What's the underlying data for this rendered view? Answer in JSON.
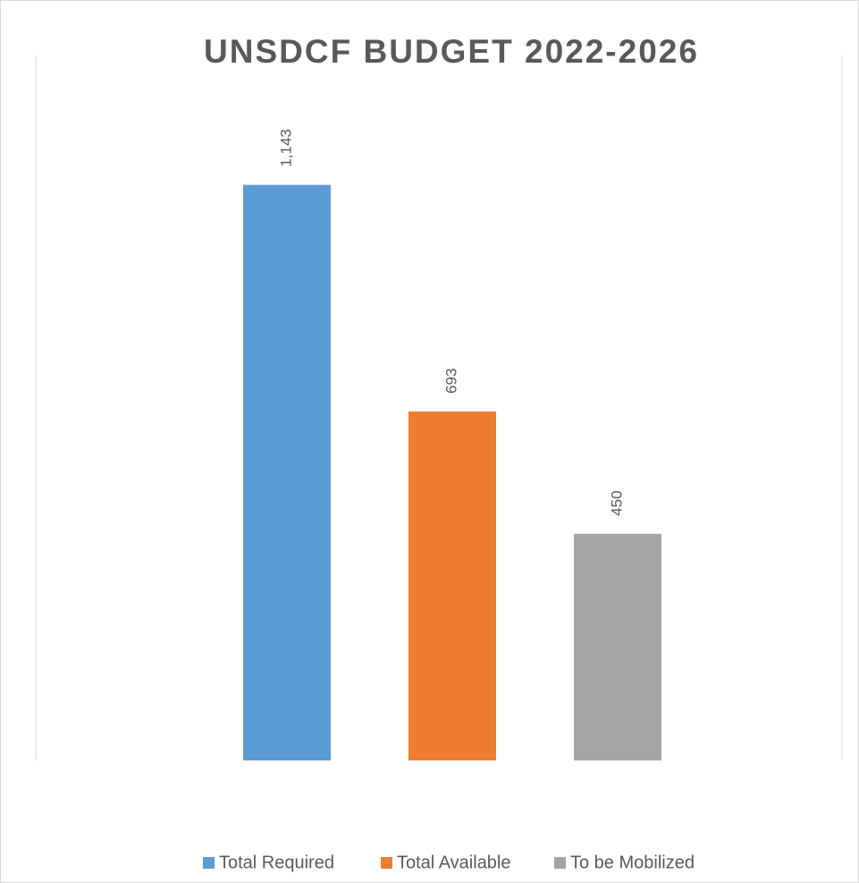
{
  "chart_data": {
    "type": "bar",
    "title": "UNSDCF BUDGET 2022-2026",
    "categories": [
      null
    ],
    "series": [
      {
        "name": "Total Required",
        "color": "#5b9bd5",
        "values": [
          1143
        ],
        "value_labels": [
          "1,143"
        ]
      },
      {
        "name": "Total Available",
        "color": "#ed7d31",
        "values": [
          693
        ]
      },
      {
        "name": "To be Mobilized",
        "color": "#a5a5a5",
        "values": [
          450
        ]
      }
    ],
    "ylim": [
      0,
      1400
    ],
    "legend": "bottom"
  }
}
